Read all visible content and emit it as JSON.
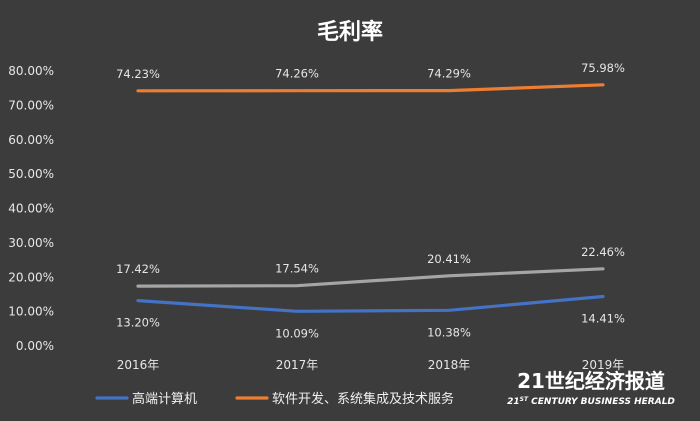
{
  "colors": {
    "background": "#3c3c3c",
    "series_colors": [
      "#4472c4",
      "#ed7d31",
      "#a5a5a5"
    ]
  },
  "watermark": {
    "main": "21世纪经济报道",
    "sub_prefix": "21",
    "sub_sup": "ST",
    "sub_rest": " CENTURY BUSINESS HERALD"
  },
  "chart_data": {
    "type": "line",
    "title": "毛利率",
    "categories": [
      "2016年",
      "2017年",
      "2018年",
      "2019年"
    ],
    "ylim": [
      0,
      80
    ],
    "yticks": [
      "0.00%",
      "10.00%",
      "20.00%",
      "30.00%",
      "40.00%",
      "50.00%",
      "60.00%",
      "70.00%",
      "80.00%"
    ],
    "grid": false,
    "legend_position": "bottom",
    "series": [
      {
        "name": "高端计算机",
        "values": [
          13.2,
          10.09,
          10.38,
          14.41
        ],
        "labels": [
          "13.20%",
          "10.09%",
          "10.38%",
          "14.41%"
        ],
        "label_position": "below"
      },
      {
        "name": "软件开发、系统集成及技术服务",
        "values": [
          74.23,
          74.26,
          74.29,
          75.98
        ],
        "labels": [
          "74.23%",
          "74.26%",
          "74.29%",
          "75.98%"
        ],
        "label_position": "above"
      },
      {
        "name": "",
        "values": [
          17.42,
          17.54,
          20.41,
          22.46
        ],
        "labels": [
          "17.42%",
          "17.54%",
          "20.41%",
          "22.46%"
        ],
        "label_position": "above"
      }
    ]
  }
}
